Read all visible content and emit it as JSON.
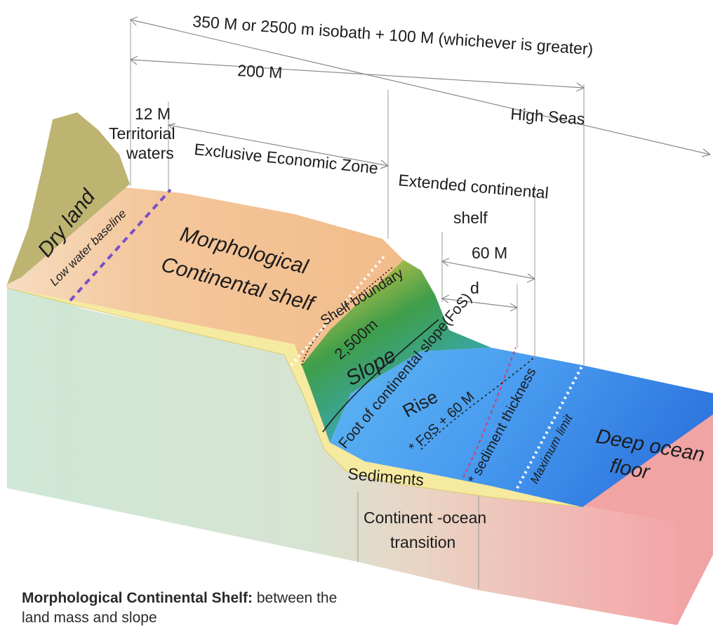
{
  "measures": {
    "top_limit": "350 M or 2500 m isobath + 100 M (whichever is greater)",
    "eez_limit": "200 M",
    "territorial_limit": "12 M",
    "high_seas": "High Seas",
    "sixty_m": "60 M",
    "d": "d"
  },
  "zones": {
    "territorial_line1": "Territorial",
    "territorial_line2": "waters",
    "eez": "Exclusive Economic Zone",
    "extended_line1": "Extended continental",
    "extended_line2": "shelf"
  },
  "features": {
    "dry_land": "Dry land",
    "low_water": "Low water baseline",
    "morph_line1": "Morphological",
    "morph_line2": "Continental shelf",
    "shelf_boundary": "Shelf boundary",
    "isobath": "2,500m",
    "slope": "Slope",
    "fos": "Foot of continental slope(FoS)",
    "rise": "Rise",
    "fos60": "* FoS + 60 M",
    "sediment_thickness": "* sediment thickness",
    "max_limit": "Maximum limit",
    "deep_line1": "Deep ocean",
    "deep_line2": "floor",
    "sediments": "Sediments",
    "cot_line1": "Continent -ocean",
    "cot_line2": "transition"
  },
  "caption": {
    "bold": "Morphological Continental Shelf:",
    "text": " between the land mass and slope"
  },
  "colors": {
    "land": "#bdb472",
    "shelf": "#f3c393",
    "deep_ocean": "#3f8fe8",
    "sediments": "#f6eaa0",
    "block_side": "#cfe7d6",
    "block_end": "#f0a4a4",
    "slope_green": "#3e9e4a",
    "baseline": "#7b4fc8"
  }
}
